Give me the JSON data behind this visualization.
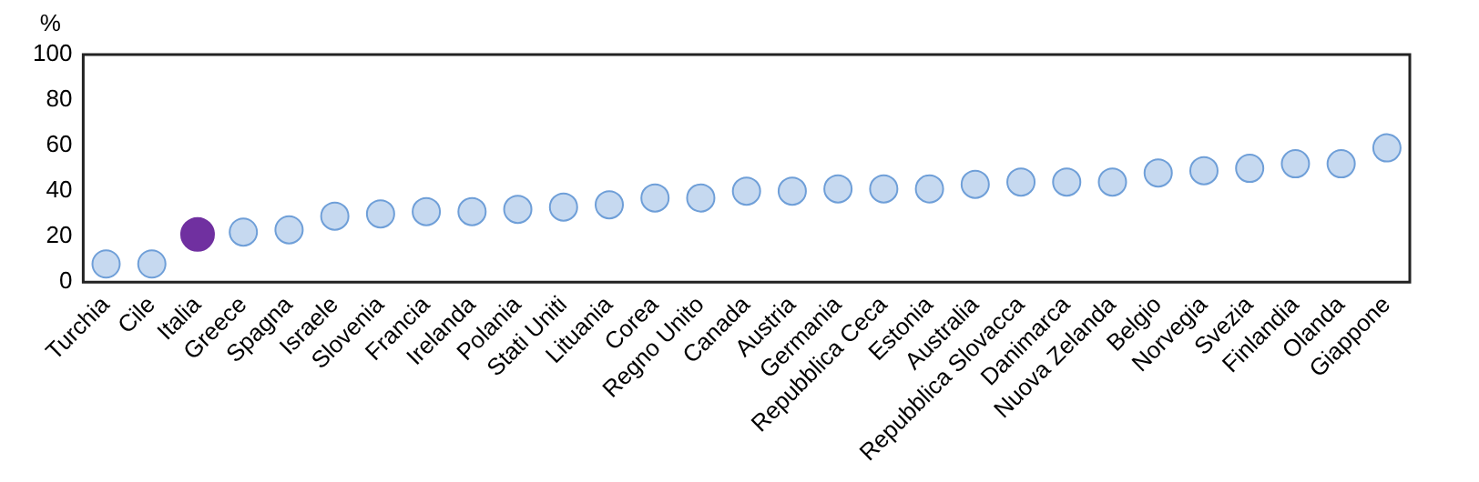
{
  "chart_data": {
    "type": "scatter",
    "ylabel": "%",
    "categories": [
      "Turchia",
      "Cile",
      "Italia",
      "Greece",
      "Spagna",
      "Israele",
      "Slovenia",
      "Francia",
      "Irelanda",
      "Polania",
      "Stati Uniti",
      "Lituania",
      "Corea",
      "Regno Unito",
      "Canada",
      "Austria",
      "Germania",
      "Repubblica Ceca",
      "Estonia",
      "Australia",
      "Repubblica Slovacca",
      "Danimarca",
      "Nuova Zelanda",
      "Belgio",
      "Norvegia",
      "Svezia",
      "Finlandia",
      "Olanda",
      "Giappone"
    ],
    "values": [
      8,
      8,
      21,
      22,
      23,
      29,
      30,
      31,
      31,
      32,
      33,
      34,
      37,
      37,
      40,
      40,
      41,
      41,
      41,
      43,
      44,
      44,
      44,
      48,
      49,
      50,
      52,
      52,
      59
    ],
    "colors": [
      "#c6d9f0",
      "#c6d9f0",
      "#7030a0",
      "#c6d9f0",
      "#c6d9f0",
      "#c6d9f0",
      "#c6d9f0",
      "#c6d9f0",
      "#c6d9f0",
      "#c6d9f0",
      "#c6d9f0",
      "#c6d9f0",
      "#c6d9f0",
      "#c6d9f0",
      "#c6d9f0",
      "#c6d9f0",
      "#c6d9f0",
      "#c6d9f0",
      "#c6d9f0",
      "#c6d9f0",
      "#c6d9f0",
      "#c6d9f0",
      "#c6d9f0",
      "#c6d9f0",
      "#c6d9f0",
      "#c6d9f0",
      "#c6d9f0",
      "#c6d9f0",
      "#c6d9f0"
    ],
    "ylim": [
      0,
      100
    ],
    "yticks": [
      0,
      20,
      40,
      60,
      80,
      100
    ],
    "grid": false,
    "legend": false,
    "marker": "circle"
  }
}
